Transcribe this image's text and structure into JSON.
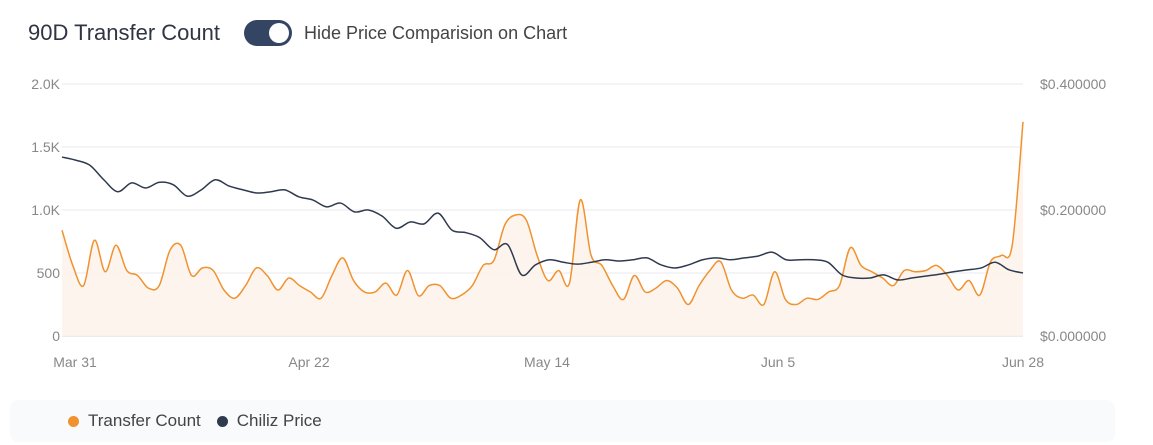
{
  "header": {
    "title": "90D Transfer Count",
    "toggle_label": "Hide Price Comparision on Chart",
    "toggle_on": true
  },
  "chart_data": {
    "type": "line",
    "title": "90D Transfer Count",
    "x_tick_labels": [
      "Mar 31",
      "Apr 22",
      "May 14",
      "Jun 5",
      "Jun 28"
    ],
    "y_left": {
      "ticks": [
        "0",
        "500",
        "1.0K",
        "1.5K",
        "2.0K"
      ],
      "range": [
        0,
        2000
      ]
    },
    "y_right": {
      "ticks": [
        "$0.000000",
        "$0.200000",
        "$0.400000"
      ],
      "range": [
        0,
        0.4
      ]
    },
    "colors": {
      "transfer": "#f0922f",
      "price": "#2f3a4f"
    },
    "series": [
      {
        "name": "Transfer Count",
        "axis": "left",
        "area": true,
        "values": [
          840,
          560,
          400,
          760,
          510,
          720,
          520,
          480,
          380,
          400,
          680,
          720,
          480,
          540,
          520,
          365,
          300,
          400,
          540,
          480,
          365,
          460,
          400,
          350,
          300,
          480,
          620,
          440,
          350,
          350,
          420,
          325,
          520,
          320,
          400,
          400,
          300,
          325,
          400,
          560,
          600,
          880,
          960,
          920,
          640,
          440,
          520,
          420,
          1080,
          640,
          560,
          400,
          290,
          480,
          350,
          380,
          440,
          380,
          250,
          400,
          520,
          590,
          365,
          300,
          325,
          250,
          510,
          290,
          250,
          300,
          290,
          350,
          400,
          700,
          560,
          510,
          460,
          400,
          520,
          510,
          520,
          560,
          480,
          365,
          440,
          325,
          590,
          640,
          720,
          1700
        ]
      },
      {
        "name": "Chiliz Price",
        "axis": "right",
        "area": false,
        "values": [
          0.284,
          0.279,
          0.271,
          0.248,
          0.229,
          0.243,
          0.235,
          0.244,
          0.24,
          0.222,
          0.232,
          0.248,
          0.238,
          0.232,
          0.227,
          0.229,
          0.232,
          0.221,
          0.216,
          0.205,
          0.211,
          0.197,
          0.2,
          0.19,
          0.171,
          0.181,
          0.178,
          0.195,
          0.168,
          0.164,
          0.156,
          0.137,
          0.145,
          0.097,
          0.113,
          0.121,
          0.117,
          0.114,
          0.117,
          0.121,
          0.119,
          0.121,
          0.124,
          0.113,
          0.108,
          0.113,
          0.121,
          0.124,
          0.121,
          0.124,
          0.127,
          0.133,
          0.121,
          0.121,
          0.121,
          0.117,
          0.097,
          0.092,
          0.092,
          0.097,
          0.089,
          0.092,
          0.095,
          0.098,
          0.102,
          0.105,
          0.108,
          0.117,
          0.105,
          0.1
        ]
      }
    ]
  },
  "legend": {
    "items": [
      "Transfer Count",
      "Chiliz Price"
    ]
  }
}
